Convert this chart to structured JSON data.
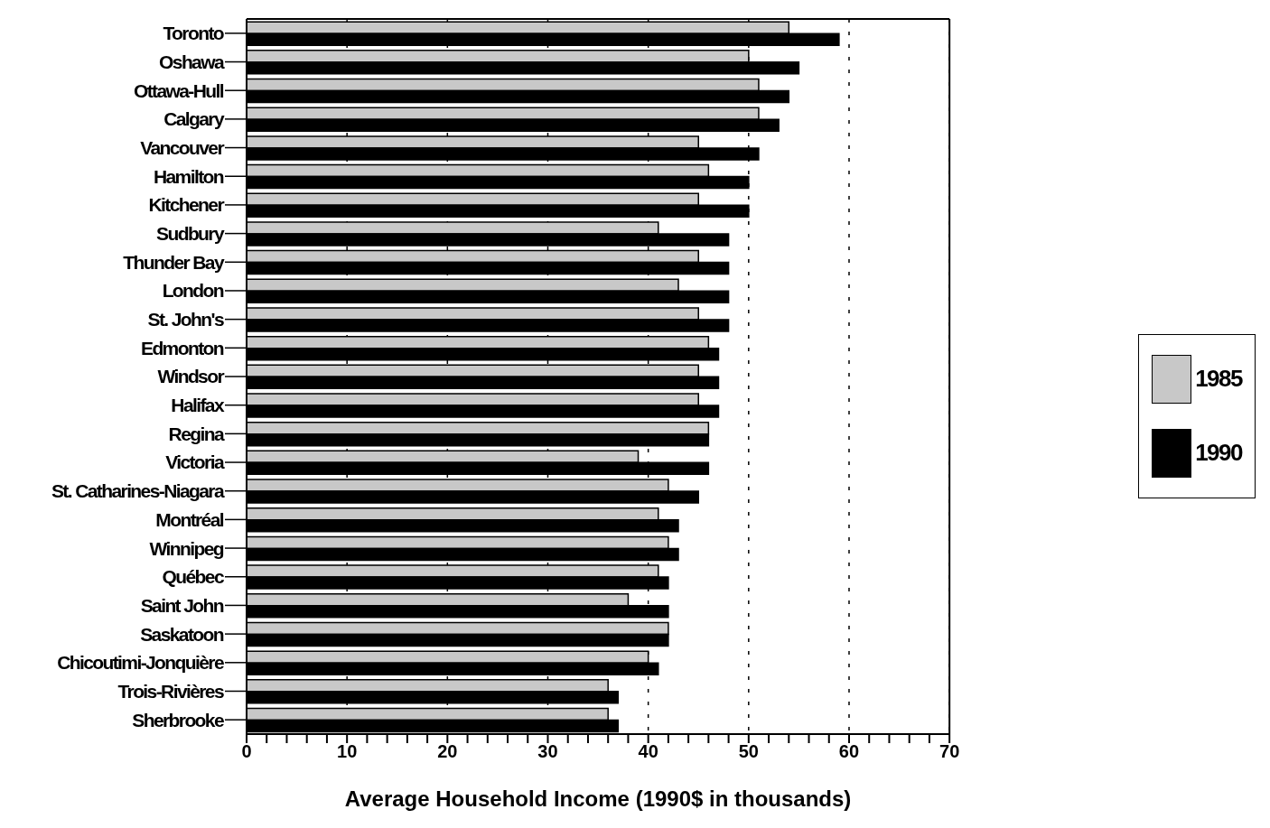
{
  "chart_data": {
    "type": "bar",
    "orientation": "horizontal",
    "xlabel": "Average Household Income (1990$ in thousands)",
    "categories": [
      "Toronto",
      "Oshawa",
      "Ottawa-Hull",
      "Calgary",
      "Vancouver",
      "Hamilton",
      "Kitchener",
      "Sudbury",
      "Thunder Bay",
      "London",
      "St. John's",
      "Edmonton",
      "Windsor",
      "Halifax",
      "Regina",
      "Victoria",
      "St. Catharines-Niagara",
      "Montréal",
      "Winnipeg",
      "Québec",
      "Saint John",
      "Saskatoon",
      "Chicoutimi-Jonquière",
      "Trois-Rivières",
      "Sherbrooke"
    ],
    "series": [
      {
        "name": "1985",
        "color": "#c8c8c8",
        "values": [
          54,
          50,
          51,
          51,
          45,
          46,
          45,
          41,
          45,
          43,
          45,
          46,
          45,
          45,
          46,
          39,
          42,
          41,
          42,
          41,
          38,
          42,
          40,
          36,
          36
        ]
      },
      {
        "name": "1990",
        "color": "#000000",
        "values": [
          59,
          55,
          54,
          53,
          51,
          50,
          50,
          48,
          48,
          48,
          48,
          47,
          47,
          47,
          46,
          46,
          45,
          43,
          43,
          42,
          42,
          42,
          41,
          37,
          37
        ]
      }
    ],
    "xlim": [
      0,
      70
    ],
    "xticks": [
      0,
      {
        "value": 2,
        "label": null
      },
      {
        "value": 4,
        "label": null
      },
      {
        "value": 6,
        "label": null
      },
      {
        "value": 8,
        "label": null
      },
      10,
      {
        "value": 12,
        "label": null
      },
      {
        "value": 14,
        "label": null
      },
      {
        "value": 16,
        "label": null
      },
      {
        "value": 18,
        "label": null
      },
      20,
      {
        "value": 22,
        "label": null
      },
      {
        "value": 24,
        "label": null
      },
      {
        "value": 26,
        "label": null
      },
      {
        "value": 28,
        "label": null
      },
      30,
      {
        "value": 32,
        "label": null
      },
      {
        "value": 34,
        "label": null
      },
      {
        "value": 36,
        "label": null
      },
      {
        "value": 38,
        "label": null
      },
      40,
      {
        "value": 42,
        "label": null
      },
      {
        "value": 44,
        "label": null
      },
      {
        "value": 46,
        "label": null
      },
      {
        "value": 48,
        "label": null
      },
      50,
      {
        "value": 52,
        "label": null
      },
      {
        "value": 54,
        "label": null
      },
      {
        "value": 56,
        "label": null
      },
      {
        "value": 58,
        "label": null
      },
      60,
      {
        "value": 62,
        "label": null
      },
      {
        "value": 64,
        "label": null
      },
      {
        "value": 66,
        "label": null
      },
      {
        "value": 68,
        "label": null
      },
      70
    ],
    "grid": "x",
    "legend": "right"
  }
}
